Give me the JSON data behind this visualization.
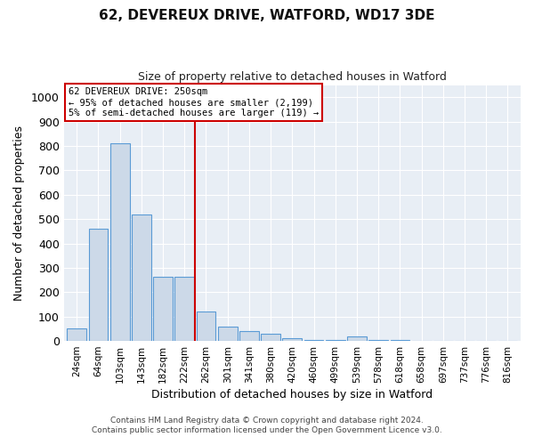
{
  "title1": "62, DEVEREUX DRIVE, WATFORD, WD17 3DE",
  "title2": "Size of property relative to detached houses in Watford",
  "xlabel": "Distribution of detached houses by size in Watford",
  "ylabel": "Number of detached properties",
  "categories": [
    "24sqm",
    "64sqm",
    "103sqm",
    "143sqm",
    "182sqm",
    "222sqm",
    "262sqm",
    "301sqm",
    "341sqm",
    "380sqm",
    "420sqm",
    "460sqm",
    "499sqm",
    "539sqm",
    "578sqm",
    "618sqm",
    "658sqm",
    "697sqm",
    "737sqm",
    "776sqm",
    "816sqm"
  ],
  "values": [
    50,
    460,
    810,
    520,
    265,
    265,
    120,
    60,
    40,
    30,
    10,
    5,
    5,
    20,
    5,
    5,
    0,
    0,
    0,
    0,
    0
  ],
  "bar_color": "#ccd9e8",
  "bar_edge_color": "#5b9bd5",
  "vline_x": 6,
  "vline_color": "#cc0000",
  "annotation_line1": "62 DEVEREUX DRIVE: 250sqm",
  "annotation_line2": "← 95% of detached houses are smaller (2,199)",
  "annotation_line3": "5% of semi-detached houses are larger (119) →",
  "ylim": [
    0,
    1050
  ],
  "yticks": [
    0,
    100,
    200,
    300,
    400,
    500,
    600,
    700,
    800,
    900,
    1000
  ],
  "footer1": "Contains HM Land Registry data © Crown copyright and database right 2024.",
  "footer2": "Contains public sector information licensed under the Open Government Licence v3.0.",
  "outer_bg_color": "#ffffff",
  "plot_bg_color": "#e8eef5"
}
